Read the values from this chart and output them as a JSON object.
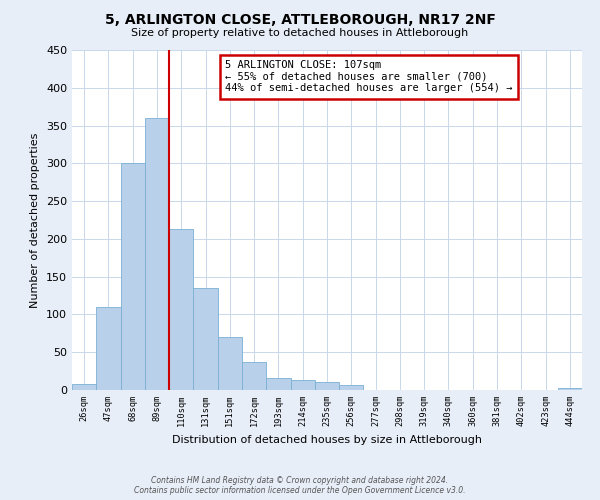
{
  "title": "5, ARLINGTON CLOSE, ATTLEBOROUGH, NR17 2NF",
  "subtitle": "Size of property relative to detached houses in Attleborough",
  "xlabel": "Distribution of detached houses by size in Attleborough",
  "ylabel": "Number of detached properties",
  "bin_labels": [
    "26sqm",
    "47sqm",
    "68sqm",
    "89sqm",
    "110sqm",
    "131sqm",
    "151sqm",
    "172sqm",
    "193sqm",
    "214sqm",
    "235sqm",
    "256sqm",
    "277sqm",
    "298sqm",
    "319sqm",
    "340sqm",
    "360sqm",
    "381sqm",
    "402sqm",
    "423sqm",
    "444sqm"
  ],
  "bar_heights": [
    8,
    110,
    300,
    360,
    213,
    135,
    70,
    37,
    16,
    13,
    10,
    6,
    0,
    0,
    0,
    0,
    0,
    0,
    0,
    0,
    3
  ],
  "bar_color": "#b8d0ea",
  "bar_edge_color": "#7aafd4",
  "property_line_x": 4,
  "property_line_color": "#cc0000",
  "annotation_title": "5 ARLINGTON CLOSE: 107sqm",
  "annotation_line1": "← 55% of detached houses are smaller (700)",
  "annotation_line2": "44% of semi-detached houses are larger (554) →",
  "annotation_box_color": "#cc0000",
  "ylim": [
    0,
    450
  ],
  "yticks": [
    0,
    50,
    100,
    150,
    200,
    250,
    300,
    350,
    400,
    450
  ],
  "footer_line1": "Contains HM Land Registry data © Crown copyright and database right 2024.",
  "footer_line2": "Contains public sector information licensed under the Open Government Licence v3.0.",
  "background_color": "#e8eef8",
  "plot_bg_color": "#ffffff",
  "grid_color": "#c8d8ea"
}
